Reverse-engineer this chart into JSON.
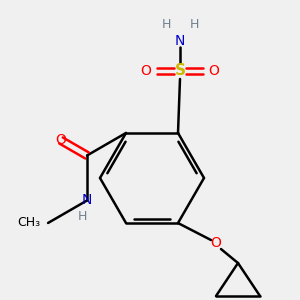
{
  "background_color": "#f0f0f0",
  "atom_colors": {
    "C": "#000000",
    "N": "#0000cd",
    "O": "#ff0000",
    "S": "#ccb800",
    "H": "#708090"
  },
  "figsize": [
    3.0,
    3.0
  ],
  "dpi": 100
}
